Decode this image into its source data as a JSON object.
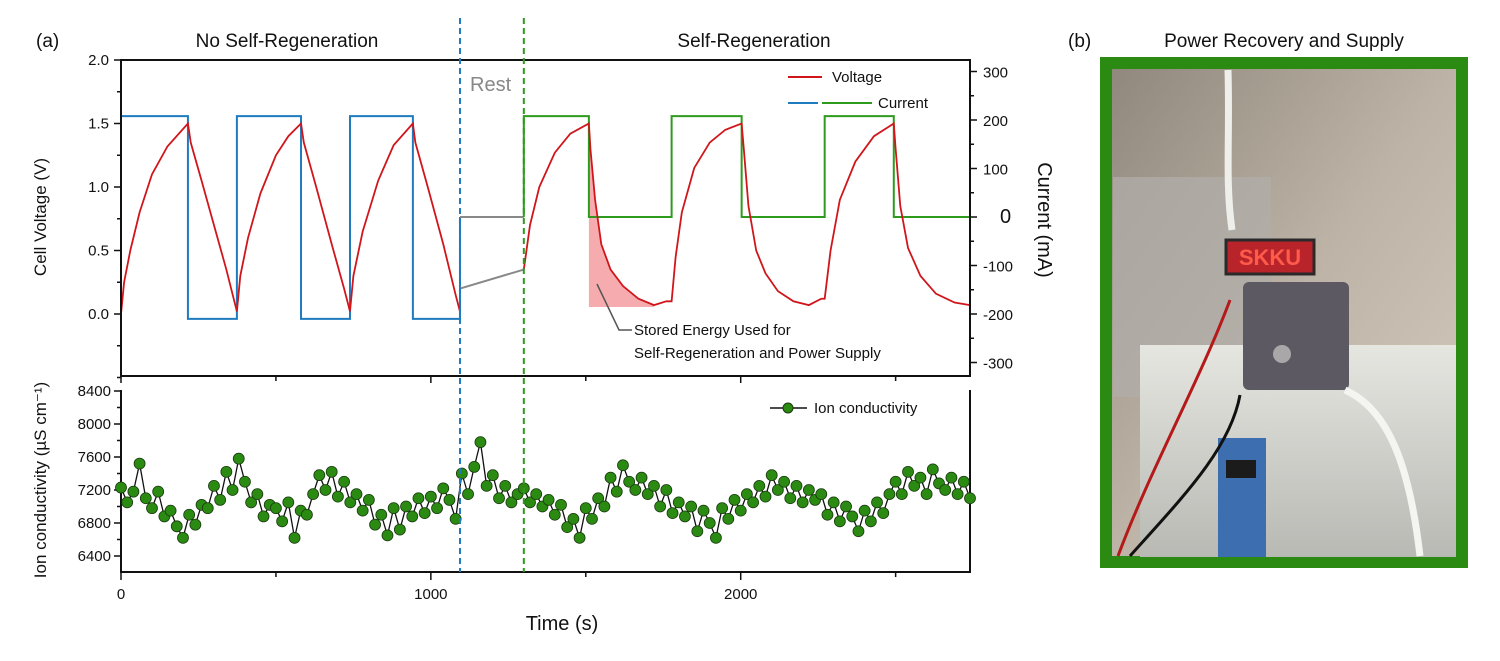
{
  "panel_a": {
    "label": "(a)",
    "section_left": "No Self-Regeneration",
    "section_right": "Self-Regeneration",
    "rest_label": "Rest",
    "annotation_line1": "Stored Energy Used for",
    "annotation_line2": "Self-Regeneration and Power Supply"
  },
  "panel_b": {
    "label": "(b)",
    "title": "Power Recovery and Supply",
    "display_text": "SKKU",
    "frame_color": "#2a8a12"
  },
  "colors": {
    "voltage": "#d0161b",
    "current_no_regen": "#1f7bbf",
    "current_regen": "#2e9a1e",
    "rest": "#888888",
    "conductivity_marker": "#2a8a12",
    "shaded_energy": "#f5a3a6"
  },
  "chart_data": [
    {
      "type": "line",
      "xlabel": "Time (s)",
      "ylabel": "Cell Voltage (V)",
      "y2label": "Current (mA)",
      "xlim": [
        0,
        2740
      ],
      "ylim": [
        -0.5,
        2.0
      ],
      "y2lim": [
        -330,
        330
      ],
      "yticks": [
        "2.0",
        "1.5",
        "1.0",
        "0.5",
        "0.0"
      ],
      "y2ticks": [
        "300",
        "200",
        "100",
        "0",
        "-100",
        "-200",
        "-300"
      ],
      "phase_boundaries": [
        1094,
        1300
      ],
      "legend": [
        "Voltage",
        "Current"
      ],
      "legend_placement": "top-right",
      "voltage": [
        [
          0,
          0
        ],
        [
          10,
          0.25
        ],
        [
          30,
          0.5
        ],
        [
          60,
          0.8
        ],
        [
          100,
          1.1
        ],
        [
          150,
          1.32
        ],
        [
          216,
          1.5
        ],
        [
          225,
          1.35
        ],
        [
          260,
          1.05
        ],
        [
          300,
          0.7
        ],
        [
          340,
          0.35
        ],
        [
          374,
          0.02
        ],
        [
          385,
          0.3
        ],
        [
          410,
          0.6
        ],
        [
          450,
          0.95
        ],
        [
          500,
          1.25
        ],
        [
          540,
          1.4
        ],
        [
          581,
          1.5
        ],
        [
          590,
          1.35
        ],
        [
          630,
          1.0
        ],
        [
          680,
          0.55
        ],
        [
          720,
          0.2
        ],
        [
          739,
          0.02
        ],
        [
          750,
          0.3
        ],
        [
          780,
          0.65
        ],
        [
          830,
          1.05
        ],
        [
          880,
          1.33
        ],
        [
          942,
          1.5
        ],
        [
          950,
          1.35
        ],
        [
          990,
          1.0
        ],
        [
          1040,
          0.55
        ],
        [
          1080,
          0.15
        ],
        [
          1094,
          0.02
        ]
      ],
      "voltage_regen": [
        [
          1300,
          0.35
        ],
        [
          1320,
          0.7
        ],
        [
          1350,
          1.0
        ],
        [
          1400,
          1.27
        ],
        [
          1450,
          1.42
        ],
        [
          1510,
          1.5
        ],
        [
          1515,
          1.3
        ],
        [
          1530,
          0.9
        ],
        [
          1550,
          0.55
        ],
        [
          1580,
          0.35
        ],
        [
          1620,
          0.22
        ],
        [
          1670,
          0.12
        ],
        [
          1720,
          0.07
        ],
        [
          1760,
          0.1
        ],
        [
          1777,
          0.1
        ],
        [
          1790,
          0.45
        ],
        [
          1810,
          0.8
        ],
        [
          1850,
          1.15
        ],
        [
          1900,
          1.35
        ],
        [
          1950,
          1.45
        ],
        [
          2003,
          1.5
        ],
        [
          2010,
          1.3
        ],
        [
          2025,
          0.85
        ],
        [
          2050,
          0.5
        ],
        [
          2080,
          0.32
        ],
        [
          2120,
          0.18
        ],
        [
          2170,
          0.1
        ],
        [
          2220,
          0.07
        ],
        [
          2260,
          0.12
        ],
        [
          2271,
          0.12
        ],
        [
          2290,
          0.5
        ],
        [
          2320,
          0.9
        ],
        [
          2370,
          1.2
        ],
        [
          2430,
          1.4
        ],
        [
          2494,
          1.5
        ],
        [
          2500,
          1.3
        ],
        [
          2515,
          0.85
        ],
        [
          2540,
          0.52
        ],
        [
          2580,
          0.3
        ],
        [
          2630,
          0.16
        ],
        [
          2690,
          0.09
        ],
        [
          2740,
          0.07
        ]
      ],
      "voltage_rest": [
        [
          1094,
          0.2
        ],
        [
          1300,
          0.35
        ]
      ],
      "shaded_region": {
        "x_range": [
          1510,
          1720
        ],
        "baseline_v": 0.055
      },
      "current_no_regen": [
        [
          0,
          0
        ],
        [
          0,
          208
        ],
        [
          216,
          208
        ],
        [
          216,
          -210
        ],
        [
          374,
          -210
        ],
        [
          374,
          208
        ],
        [
          581,
          208
        ],
        [
          581,
          -210
        ],
        [
          739,
          -210
        ],
        [
          739,
          208
        ],
        [
          942,
          208
        ],
        [
          942,
          -210
        ],
        [
          1094,
          -210
        ],
        [
          1094,
          0
        ]
      ],
      "current_rest": [
        [
          1094,
          0
        ],
        [
          1300,
          0
        ]
      ],
      "current_regen": [
        [
          1300,
          0
        ],
        [
          1300,
          208
        ],
        [
          1510,
          208
        ],
        [
          1510,
          0
        ],
        [
          1777,
          0
        ],
        [
          1777,
          208
        ],
        [
          2003,
          208
        ],
        [
          2003,
          0
        ],
        [
          2271,
          0
        ],
        [
          2271,
          208
        ],
        [
          2494,
          208
        ],
        [
          2494,
          0
        ],
        [
          2740,
          0
        ]
      ]
    },
    {
      "type": "scatter",
      "xlabel": "Time (s)",
      "ylabel": "Ion conductivity (µS cm⁻¹)",
      "xlim": [
        0,
        2740
      ],
      "ylim": [
        6220,
        8480
      ],
      "xticks": [
        "0",
        "1000",
        "2000"
      ],
      "yticks": [
        "8400",
        "8000",
        "7600",
        "7200",
        "6800",
        "6400"
      ],
      "legend": [
        "Ion conductivity"
      ],
      "legend_placement": "top-right",
      "x": [
        0,
        20,
        40,
        60,
        80,
        100,
        120,
        140,
        160,
        180,
        200,
        220,
        240,
        260,
        280,
        300,
        320,
        340,
        360,
        380,
        400,
        420,
        440,
        460,
        480,
        500,
        520,
        540,
        560,
        580,
        600,
        620,
        640,
        660,
        680,
        700,
        720,
        740,
        760,
        780,
        800,
        820,
        840,
        860,
        880,
        900,
        920,
        940,
        960,
        980,
        1000,
        1020,
        1040,
        1060,
        1080,
        1100,
        1120,
        1140,
        1160,
        1180,
        1200,
        1220,
        1240,
        1260,
        1280,
        1300,
        1320,
        1340,
        1360,
        1380,
        1400,
        1420,
        1440,
        1460,
        1480,
        1500,
        1520,
        1540,
        1560,
        1580,
        1600,
        1620,
        1640,
        1660,
        1680,
        1700,
        1720,
        1740,
        1760,
        1780,
        1800,
        1820,
        1840,
        1860,
        1880,
        1900,
        1920,
        1940,
        1960,
        1980,
        2000,
        2020,
        2040,
        2060,
        2080,
        2100,
        2120,
        2140,
        2160,
        2180,
        2200,
        2220,
        2240,
        2260,
        2280,
        2300,
        2320,
        2340,
        2360,
        2380,
        2400,
        2420,
        2440,
        2460,
        2480,
        2500,
        2520,
        2540,
        2560,
        2580,
        2600,
        2620,
        2640,
        2660,
        2680,
        2700,
        2720,
        2740
      ],
      "y": [
        7230,
        7050,
        7180,
        7520,
        7100,
        6980,
        7180,
        6880,
        6950,
        6760,
        6620,
        6900,
        6780,
        7020,
        6980,
        7250,
        7080,
        7420,
        7200,
        7580,
        7300,
        7050,
        7150,
        6880,
        7020,
        6980,
        6820,
        7050,
        6620,
        6950,
        6900,
        7150,
        7380,
        7200,
        7420,
        7120,
        7300,
        7050,
        7150,
        6950,
        7080,
        6780,
        6900,
        6650,
        6980,
        6720,
        7000,
        6880,
        7100,
        6920,
        7120,
        6980,
        7220,
        7080,
        6850,
        7400,
        7150,
        7480,
        7780,
        7250,
        7380,
        7100,
        7250,
        7050,
        7150,
        7220,
        7050,
        7150,
        7000,
        7080,
        6900,
        7020,
        6750,
        6850,
        6620,
        6980,
        6850,
        7100,
        7000,
        7350,
        7180,
        7500,
        7300,
        7200,
        7350,
        7150,
        7250,
        7000,
        7200,
        6920,
        7050,
        6880,
        7000,
        6700,
        6950,
        6800,
        6620,
        6980,
        6850,
        7080,
        6950,
        7150,
        7050,
        7250,
        7120,
        7380,
        7200,
        7300,
        7100,
        7250,
        7050,
        7200,
        7080,
        7150,
        6900,
        7050,
        6820,
        7000,
        6880,
        6700,
        6950,
        6820,
        7050,
        6920,
        7150,
        7300,
        7150,
        7420,
        7250,
        7350,
        7150,
        7450,
        7280,
        7200,
        7350,
        7150,
        7300,
        7100
      ]
    }
  ]
}
